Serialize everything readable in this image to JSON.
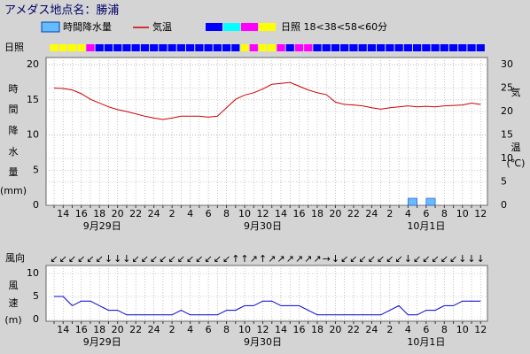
{
  "header": {
    "title": "アメダス地点名：勝浦"
  },
  "legend": {
    "sunshine_label": "日照 18<38<58<60分",
    "sunshine_colors": [
      "#0000ff",
      "#00ffff",
      "#ff00ff",
      "#ffff00"
    ]
  },
  "chart_data": [
    {
      "type": "combo",
      "categories": [
        null,
        "14",
        null,
        "16",
        null,
        "18",
        null,
        "20",
        null,
        "22",
        null,
        "24",
        null,
        "2",
        null,
        "4",
        null,
        "6",
        null,
        "8",
        null,
        "10",
        null,
        "12",
        null,
        "14",
        null,
        "16",
        null,
        "18",
        null,
        "20",
        null,
        "22",
        null,
        "24",
        null,
        "2",
        null,
        "4",
        null,
        "6",
        null,
        "8",
        null,
        "10",
        null,
        "12"
      ],
      "date_labels": [
        "9月29日",
        "9月30日",
        "10月1日"
      ],
      "ylabel": [
        "時",
        "間",
        "降",
        "水",
        "量",
        "(mm)"
      ],
      "y2label": [
        "気",
        "温",
        "(℃)"
      ],
      "ylim": [
        0,
        20
      ],
      "yticks": [
        0,
        5,
        10,
        15,
        20
      ],
      "y2lim": [
        0,
        30
      ],
      "y2ticks": [
        0,
        5,
        10,
        15,
        20,
        25,
        30
      ],
      "grid": true,
      "sunshine": {
        "label": "日照",
        "levels": [
          3,
          3,
          3,
          3,
          2,
          0,
          0,
          0,
          0,
          0,
          0,
          0,
          0,
          0,
          0,
          0,
          0,
          0,
          0,
          0,
          0,
          3,
          2,
          3,
          3,
          2,
          0,
          2,
          2,
          0,
          0,
          0,
          0,
          0,
          0,
          0,
          0,
          0,
          0,
          0,
          0,
          0,
          0,
          0,
          0,
          0,
          0,
          0
        ]
      },
      "series": [
        {
          "name": "時間降水量",
          "kind": "bar",
          "color": "#66bbff",
          "values": [
            0,
            0,
            0,
            0,
            0,
            0,
            0,
            0,
            0,
            0,
            0,
            0,
            0,
            0,
            0,
            0,
            0,
            0,
            0,
            0,
            0,
            0,
            0,
            0,
            0,
            0,
            0,
            0,
            0,
            0,
            0,
            0,
            0,
            0,
            0,
            0,
            0,
            0,
            0,
            0,
            1,
            0,
            1,
            0,
            0,
            0,
            0,
            0
          ]
        },
        {
          "name": "気温",
          "kind": "line",
          "axis": "y2",
          "color": "#cc0000",
          "values": [
            25.0,
            24.9,
            24.6,
            23.8,
            22.6,
            21.8,
            21.0,
            20.4,
            20.0,
            19.5,
            19.0,
            18.6,
            18.3,
            18.6,
            19.0,
            19.0,
            19.0,
            18.8,
            19.0,
            20.8,
            22.6,
            23.5,
            24.0,
            24.8,
            25.8,
            26.0,
            26.2,
            25.4,
            24.6,
            24.0,
            23.6,
            22.0,
            21.5,
            21.4,
            21.2,
            20.8,
            20.5,
            20.8,
            21.0,
            21.2,
            21.0,
            21.1,
            21.0,
            21.2,
            21.3,
            21.4,
            21.8,
            21.5
          ]
        }
      ]
    },
    {
      "type": "line",
      "categories": [
        null,
        "14",
        null,
        "16",
        null,
        "18",
        null,
        "20",
        null,
        "22",
        null,
        "24",
        null,
        "2",
        null,
        "4",
        null,
        "6",
        null,
        "8",
        null,
        "10",
        null,
        "12",
        null,
        "14",
        null,
        "16",
        null,
        "18",
        null,
        "20",
        null,
        "22",
        null,
        "24",
        null,
        "2",
        null,
        "4",
        null,
        "6",
        null,
        "8",
        null,
        "10",
        null,
        "12"
      ],
      "date_labels": [
        "9月29日",
        "9月30日",
        "10月1日"
      ],
      "direction_label": "風向",
      "directions": [
        "↙",
        "↙",
        "↙",
        "↙",
        "↙",
        "↙",
        "↓",
        "↓",
        "↓",
        "↙",
        "↙",
        "↙",
        "↙",
        "↙",
        "↙",
        "↙",
        "↙",
        "↙",
        "↙",
        "↙",
        "↑",
        "↑",
        "↗",
        "↑",
        "↗",
        "↗",
        "↗",
        "↗",
        "↗",
        "↗",
        "→",
        "↓",
        "↙",
        "↙",
        "↙",
        "↙",
        "↙",
        "↙",
        "↙",
        "↓",
        "↙",
        "↙",
        "↙",
        "↙",
        "↙",
        "↓",
        "↓",
        "↓"
      ],
      "ylabel": [
        "風",
        "速",
        "(m)"
      ],
      "ylim": [
        0,
        10
      ],
      "yticks": [
        0,
        5,
        10
      ],
      "grid": true,
      "series": [
        {
          "name": "風速",
          "color": "#0000cc",
          "values": [
            5,
            5,
            3,
            4,
            4,
            3,
            2,
            2,
            1,
            1,
            1,
            1,
            1,
            1,
            2,
            1,
            1,
            1,
            1,
            2,
            2,
            3,
            3,
            4,
            4,
            3,
            3,
            3,
            2,
            1,
            1,
            1,
            1,
            1,
            1,
            1,
            1,
            2,
            3,
            1,
            1,
            2,
            2,
            3,
            3,
            4,
            4,
            4
          ]
        }
      ]
    }
  ]
}
